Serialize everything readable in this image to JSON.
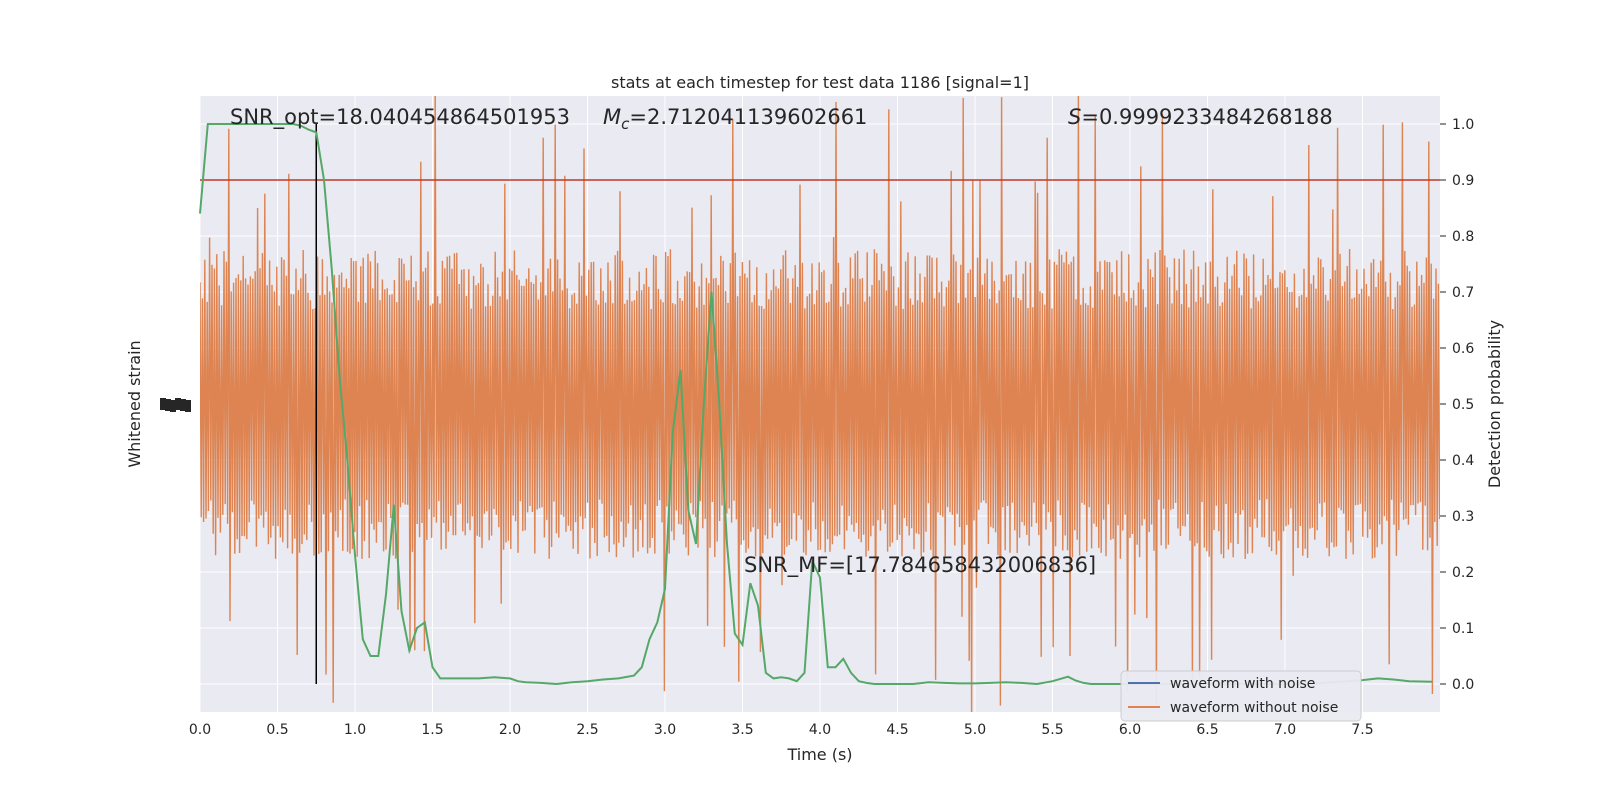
{
  "chart_data": {
    "type": "line",
    "title": "stats at each timestep for test data 1186 [signal=1]",
    "xlabel": "Time (s)",
    "ylabel_left": "Whitened strain",
    "ylabel_right": "Detection probability",
    "xlim": [
      0,
      8
    ],
    "ylim_right": [
      -0.05,
      1.05
    ],
    "x_ticks": [
      "0.0",
      "0.5",
      "1.0",
      "1.5",
      "2.0",
      "2.5",
      "3.0",
      "3.5",
      "4.0",
      "4.5",
      "5.0",
      "5.5",
      "6.0",
      "6.5",
      "7.0",
      "7.5"
    ],
    "x_tick_values": [
      0,
      0.5,
      1,
      1.5,
      2,
      2.5,
      3,
      3.5,
      4,
      4.5,
      5,
      5.5,
      6,
      6.5,
      7,
      7.5
    ],
    "y_right_ticks": [
      "0.0",
      "0.1",
      "0.2",
      "0.3",
      "0.4",
      "0.5",
      "0.6",
      "0.7",
      "0.8",
      "0.9",
      "1.0"
    ],
    "y_right_tick_values": [
      0,
      0.1,
      0.2,
      0.3,
      0.4,
      0.5,
      0.6,
      0.7,
      0.8,
      0.9,
      1.0
    ],
    "grid": true,
    "legend_placement": "lower-right",
    "annotations": {
      "snr_opt_text": "SNR_opt=18.040454864501953",
      "mc_symbol": "M",
      "mc_subscript": "c",
      "mc_value": "=2.712041139602661",
      "s_symbol": "S",
      "s_value": "=0.9999233484268188",
      "snr_mf_text": "SNR_MF=[17.784658432006836]"
    },
    "threshold": {
      "y": 0.9,
      "color": "#c0392b"
    },
    "marker_line": {
      "x": 0.75,
      "color": "#000000"
    },
    "series": [
      {
        "name": "waveform with noise",
        "color": "#4c72b0"
      },
      {
        "name": "waveform without noise",
        "color": "#dd8452"
      },
      {
        "color": "#55a868",
        "x": [
          0,
          0.05,
          0.1,
          0.2,
          0.3,
          0.4,
          0.5,
          0.6,
          0.65,
          0.7,
          0.75,
          0.8,
          0.85,
          0.9,
          0.95,
          1.0,
          1.05,
          1.1,
          1.15,
          1.2,
          1.25,
          1.3,
          1.35,
          1.4,
          1.45,
          1.5,
          1.55,
          1.6,
          1.65,
          1.7,
          1.8,
          1.9,
          2.0,
          2.05,
          2.1,
          2.2,
          2.3,
          2.4,
          2.5,
          2.6,
          2.7,
          2.8,
          2.85,
          2.9,
          2.95,
          3.0,
          3.05,
          3.1,
          3.15,
          3.2,
          3.25,
          3.3,
          3.35,
          3.4,
          3.45,
          3.5,
          3.55,
          3.6,
          3.65,
          3.7,
          3.75,
          3.8,
          3.85,
          3.9,
          3.95,
          4.0,
          4.05,
          4.1,
          4.15,
          4.2,
          4.25,
          4.3,
          4.35,
          4.4,
          4.45,
          4.5,
          4.55,
          4.6,
          4.7,
          4.8,
          4.9,
          5.0,
          5.1,
          5.2,
          5.3,
          5.4,
          5.5,
          5.6,
          5.65,
          5.7,
          5.75,
          5.8,
          5.9,
          6.0,
          6.1,
          6.2,
          6.3,
          6.4,
          6.5,
          6.6,
          6.7,
          6.8,
          6.9,
          7.0,
          7.1,
          7.2,
          7.3,
          7.4,
          7.5,
          7.6,
          7.7,
          7.8,
          7.95
        ],
        "y": [
          0.84,
          1.0,
          1.0,
          1.0,
          1.0,
          1.0,
          1.0,
          1.0,
          0.997,
          0.99,
          0.985,
          0.9,
          0.74,
          0.55,
          0.4,
          0.23,
          0.08,
          0.05,
          0.05,
          0.16,
          0.32,
          0.13,
          0.06,
          0.1,
          0.11,
          0.03,
          0.01,
          0.01,
          0.01,
          0.01,
          0.01,
          0.012,
          0.01,
          0.005,
          0.003,
          0.002,
          0.0,
          0.003,
          0.005,
          0.008,
          0.01,
          0.015,
          0.03,
          0.08,
          0.11,
          0.17,
          0.45,
          0.56,
          0.31,
          0.25,
          0.5,
          0.7,
          0.5,
          0.25,
          0.09,
          0.07,
          0.18,
          0.14,
          0.02,
          0.01,
          0.012,
          0.01,
          0.005,
          0.02,
          0.22,
          0.19,
          0.03,
          0.03,
          0.045,
          0.02,
          0.005,
          0.002,
          0.0,
          0.0,
          0.0,
          0.0,
          0.0,
          0.0,
          0.003,
          0.002,
          0.001,
          0.001,
          0.002,
          0.003,
          0.002,
          0.0,
          0.005,
          0.013,
          0.006,
          0.002,
          0.0,
          0.0,
          0.0,
          0.0,
          0.0,
          0.0,
          0.0,
          0.0,
          0.0,
          0.0,
          0.0,
          0.0,
          0.0,
          0.0,
          0.0,
          0.001,
          0.003,
          0.005,
          0.007,
          0.01,
          0.008,
          0.005,
          0.004
        ]
      }
    ]
  }
}
